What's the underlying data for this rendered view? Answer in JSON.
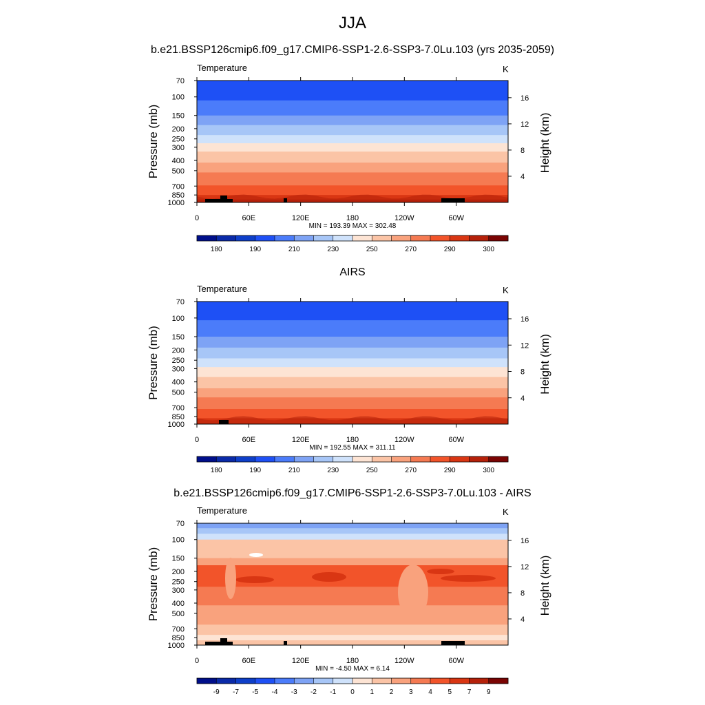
{
  "main_title": "JJA",
  "colors": {
    "abs_levels": [
      "#000f8a",
      "#0a2aa8",
      "#0e3fc9",
      "#1e50f5",
      "#4b7cfa",
      "#7ea3f5",
      "#a7c6f7",
      "#cfe2fb",
      "#fde4d4",
      "#fbc4a6",
      "#f9a27d",
      "#f57a52",
      "#f2542a",
      "#d93613",
      "#b5210a",
      "#7a0403"
    ],
    "terrain": "#000000"
  },
  "chart_data": [
    {
      "type": "heatmap",
      "title": "b.e21.BSSP126cmip6.f09_g17.CMIP6-SSP1-2.6-SSP3-7.0Lu.103 (yrs 2035-2059)",
      "left_label": "Temperature",
      "units": "K",
      "ylabel": "Pressure (mb)",
      "ylabel_right": "Height (km)",
      "x_ticks": [
        "0",
        "60E",
        "120E",
        "180",
        "120W",
        "60W"
      ],
      "y_ticks": [
        "70",
        "100",
        "150",
        "200",
        "250",
        "300",
        "400",
        "500",
        "700",
        "850",
        "1000"
      ],
      "y_ticks_right": [
        "16",
        "12",
        "8",
        "4"
      ],
      "min_max": "MIN = 193.39  MAX = 302.48",
      "colorbar_labels": [
        "180",
        "190",
        "210",
        "230",
        "250",
        "270",
        "290",
        "300"
      ]
    },
    {
      "type": "heatmap",
      "title": "AIRS",
      "left_label": "Temperature",
      "units": "K",
      "ylabel": "Pressure (mb)",
      "ylabel_right": "Height (km)",
      "x_ticks": [
        "0",
        "60E",
        "120E",
        "180",
        "120W",
        "60W"
      ],
      "y_ticks": [
        "70",
        "100",
        "150",
        "200",
        "250",
        "300",
        "400",
        "500",
        "700",
        "850",
        "1000"
      ],
      "y_ticks_right": [
        "16",
        "12",
        "8",
        "4"
      ],
      "min_max": "MIN = 192.55  MAX = 311.11",
      "colorbar_labels": [
        "180",
        "190",
        "210",
        "230",
        "250",
        "270",
        "290",
        "300"
      ]
    },
    {
      "type": "heatmap",
      "title": "b.e21.BSSP126cmip6.f09_g17.CMIP6-SSP1-2.6-SSP3-7.0Lu.103 - AIRS",
      "left_label": "Temperature",
      "units": "K",
      "ylabel": "Pressure (mb)",
      "ylabel_right": "Height (km)",
      "x_ticks": [
        "0",
        "60E",
        "120E",
        "180",
        "120W",
        "60W"
      ],
      "y_ticks": [
        "70",
        "100",
        "150",
        "200",
        "250",
        "300",
        "400",
        "500",
        "700",
        "850",
        "1000"
      ],
      "y_ticks_right": [
        "16",
        "12",
        "8",
        "4"
      ],
      "min_max": "MIN =  -4.50  MAX =   6.14",
      "colorbar_labels": [
        "-9",
        "-7",
        "-5",
        "-4",
        "-3",
        "-2",
        "-1",
        "0",
        "1",
        "2",
        "3",
        "4",
        "5",
        "7",
        "9"
      ]
    }
  ]
}
